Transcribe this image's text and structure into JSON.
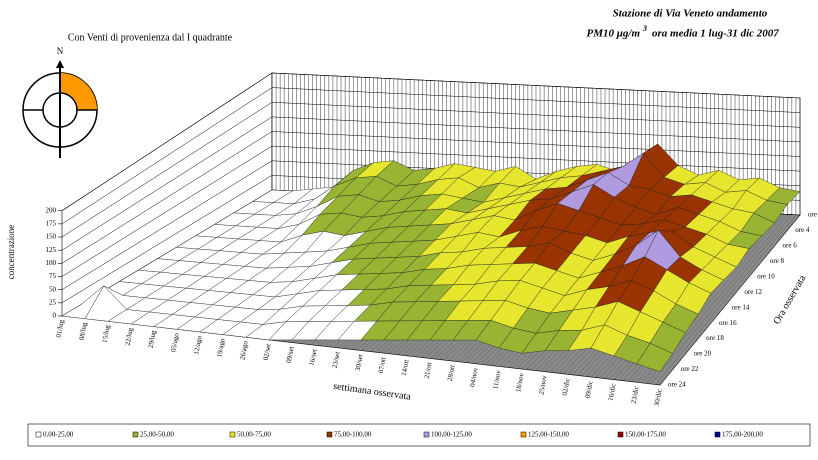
{
  "chart_data": {
    "type": "surface3d",
    "title": "Stazione di Via Veneto andamento",
    "subtitle": "PM10  μg/m",
    "subtitle_sup": "3",
    "subtitle_end": "ora media  1 lug-31 dic 2007",
    "note": "Con Venti di provenienza dal I quadrante",
    "compass_label": "N",
    "xlabel": "settimana osservata",
    "ylabel": "Ora osservata",
    "zlabel": "concentrazione",
    "zlim": [
      0,
      200
    ],
    "zticks": [
      0,
      25,
      50,
      75,
      100,
      125,
      150,
      175,
      200
    ],
    "categories": [
      "01/lug",
      "08/lug",
      "15/lug",
      "22/lug",
      "29/lug",
      "05/ago",
      "12/ago",
      "19/ago",
      "26/ago",
      "02/set",
      "09/set",
      "16/set",
      "23/set",
      "30/set",
      "07/ott",
      "14/ott",
      "21/ott",
      "28/ott",
      "04/nov",
      "11/nov",
      "18/nov",
      "25/nov",
      "02/dic",
      "09/dic",
      "16/dic",
      "23/dic",
      "30/dic"
    ],
    "rows": [
      "ore",
      "ore 4",
      "ore 6",
      "ore 8",
      "ore 10",
      "ore 12",
      "ore 14",
      "ore 16",
      "ore 18",
      "ore 20",
      "ore 22",
      "ore 24"
    ],
    "values": [
      [
        0,
        0,
        5,
        10,
        40,
        55,
        60,
        45,
        50,
        60,
        55,
        50,
        60,
        40,
        55,
        65,
        70,
        60,
        80,
        110,
        75,
        60,
        70,
        55,
        60,
        45,
        40
      ],
      [
        0,
        0,
        0,
        10,
        35,
        50,
        55,
        40,
        45,
        55,
        60,
        45,
        55,
        50,
        60,
        70,
        75,
        85,
        95,
        120,
        80,
        70,
        75,
        60,
        65,
        50,
        45
      ],
      [
        0,
        0,
        0,
        5,
        20,
        40,
        45,
        35,
        40,
        50,
        55,
        50,
        45,
        55,
        65,
        75,
        80,
        95,
        110,
        90,
        85,
        75,
        80,
        70,
        60,
        55,
        40
      ],
      [
        0,
        0,
        0,
        0,
        10,
        30,
        35,
        30,
        35,
        45,
        50,
        55,
        50,
        60,
        70,
        80,
        85,
        100,
        115,
        95,
        80,
        70,
        85,
        75,
        65,
        50,
        45
      ],
      [
        0,
        0,
        0,
        0,
        0,
        15,
        25,
        20,
        30,
        40,
        45,
        50,
        55,
        65,
        75,
        70,
        90,
        105,
        95,
        85,
        75,
        80,
        90,
        80,
        70,
        55,
        50
      ],
      [
        0,
        0,
        0,
        0,
        0,
        5,
        10,
        15,
        25,
        35,
        40,
        45,
        50,
        60,
        70,
        65,
        80,
        90,
        85,
        80,
        70,
        85,
        95,
        100,
        75,
        60,
        45
      ],
      [
        0,
        0,
        0,
        0,
        0,
        0,
        5,
        10,
        20,
        30,
        35,
        40,
        45,
        55,
        60,
        70,
        75,
        80,
        90,
        75,
        65,
        80,
        100,
        130,
        85,
        65,
        50
      ],
      [
        0,
        0,
        0,
        0,
        0,
        0,
        0,
        5,
        15,
        25,
        30,
        35,
        40,
        50,
        55,
        65,
        70,
        75,
        80,
        70,
        60,
        75,
        90,
        110,
        90,
        70,
        55
      ],
      [
        0,
        0,
        0,
        0,
        0,
        0,
        0,
        0,
        10,
        20,
        25,
        30,
        35,
        45,
        50,
        55,
        60,
        70,
        75,
        65,
        55,
        70,
        80,
        95,
        80,
        60,
        45
      ],
      [
        0,
        0,
        0,
        0,
        0,
        0,
        0,
        0,
        5,
        15,
        20,
        25,
        30,
        40,
        45,
        50,
        55,
        60,
        65,
        55,
        50,
        60,
        70,
        85,
        70,
        55,
        40
      ],
      [
        0,
        40,
        0,
        0,
        0,
        0,
        0,
        0,
        0,
        10,
        15,
        20,
        25,
        30,
        35,
        40,
        45,
        50,
        55,
        45,
        40,
        50,
        55,
        70,
        55,
        45,
        30
      ],
      [
        0,
        0,
        0,
        0,
        0,
        0,
        0,
        0,
        0,
        0,
        5,
        10,
        15,
        20,
        25,
        30,
        35,
        40,
        45,
        35,
        30,
        40,
        45,
        55,
        45,
        35,
        25
      ]
    ],
    "legend": [
      {
        "label": "0,00-25,00",
        "color": "#ffffff",
        "min": 0,
        "max": 25
      },
      {
        "label": "25,00-50,00",
        "color": "#99b333",
        "min": 25,
        "max": 50
      },
      {
        "label": "50,00-75,00",
        "color": "#e6e62e",
        "min": 50,
        "max": 75
      },
      {
        "label": "75,00-100,00",
        "color": "#993300",
        "min": 75,
        "max": 100
      },
      {
        "label": "100,00-125,00",
        "color": "#b09ae0",
        "min": 100,
        "max": 125
      },
      {
        "label": "125,00-150,00",
        "color": "#ff9900",
        "min": 125,
        "max": 150
      },
      {
        "label": "150,00-175,00",
        "color": "#990000",
        "min": 150,
        "max": 175
      },
      {
        "label": "175,00-200,00",
        "color": "#000099",
        "min": 175,
        "max": 200
      }
    ]
  }
}
